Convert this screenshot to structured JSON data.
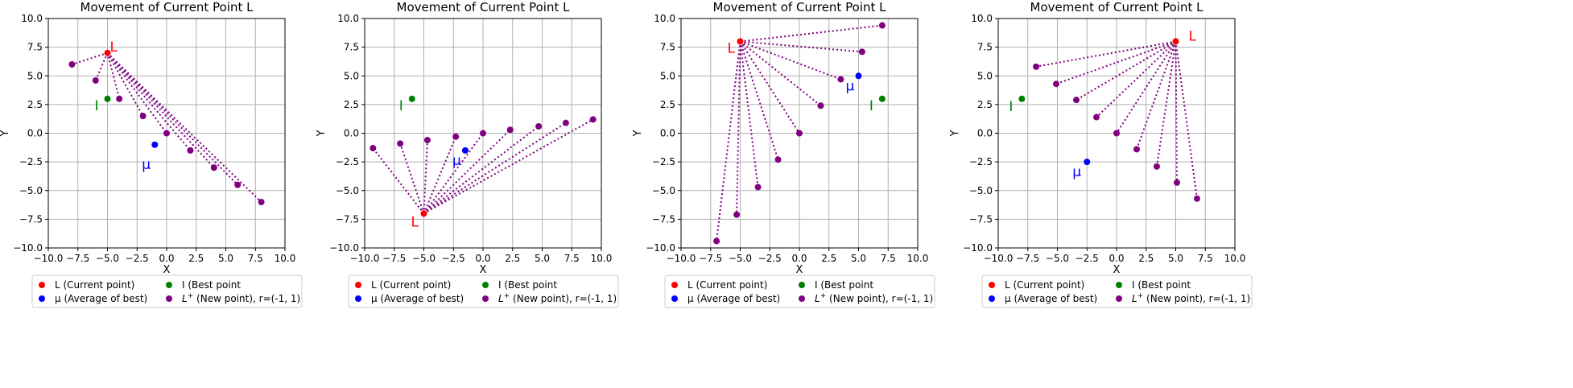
{
  "colors": {
    "current": "#ff0000",
    "average": "#0000ff",
    "best": "#008000",
    "new": "#800080"
  },
  "chart_data": [
    {
      "type": "scatter",
      "title": "Movement of Current Point L",
      "xlabel": "X",
      "ylabel": "Y",
      "xlim": [
        -10,
        10
      ],
      "ylim": [
        -10,
        10
      ],
      "xticks": [
        "−10.0",
        "−7.5",
        "−5.0",
        "−2.5",
        "0.0",
        "2.5",
        "5.0",
        "7.5",
        "10.0"
      ],
      "yticks": [
        "−10.0",
        "−7.5",
        "−5.0",
        "−2.5",
        "0.0",
        "2.5",
        "5.0",
        "7.5",
        "10.0"
      ],
      "grid": true,
      "legend_position": "below",
      "legend": [
        {
          "label": "L (Current point)",
          "series": "current"
        },
        {
          "label": "I (Best point",
          "series": "best"
        },
        {
          "label": "μ (Average of best)",
          "series": "average"
        },
        {
          "label_main": "L",
          "label_sup": "+",
          "label_rest": " (New point),   r=(-1, 1)",
          "series": "new"
        }
      ],
      "current": {
        "x": -5,
        "y": 7,
        "label": "L"
      },
      "best": {
        "x": -5,
        "y": 3,
        "label": "I"
      },
      "average": {
        "x": -1,
        "y": -1,
        "label": "μ"
      },
      "new_points": [
        {
          "x": -8.0,
          "y": 6.0
        },
        {
          "x": -6.0,
          "y": 4.6
        },
        {
          "x": -4.0,
          "y": 3.0
        },
        {
          "x": -2.0,
          "y": 1.5
        },
        {
          "x": 0.0,
          "y": 0.0
        },
        {
          "x": 2.0,
          "y": -1.5
        },
        {
          "x": 4.0,
          "y": -3.0
        },
        {
          "x": 6.0,
          "y": -4.5
        },
        {
          "x": 8.0,
          "y": -6.0
        }
      ]
    },
    {
      "type": "scatter",
      "title": "Movement of Current Point L",
      "xlabel": "X",
      "ylabel": "Y",
      "xlim": [
        -10,
        10
      ],
      "ylim": [
        -10,
        10
      ],
      "xticks": [
        "−10.0",
        "−7.5",
        "−5.0",
        "−2.5",
        "0.0",
        "2.5",
        "5.0",
        "7.5",
        "10.0"
      ],
      "yticks": [
        "−10.0",
        "−7.5",
        "−5.0",
        "−2.5",
        "0.0",
        "2.5",
        "5.0",
        "7.5",
        "10.0"
      ],
      "grid": true,
      "legend_position": "below",
      "legend": [
        {
          "label": "L (Current point)",
          "series": "current"
        },
        {
          "label": "I (Best point",
          "series": "best"
        },
        {
          "label": "μ (Average of best)",
          "series": "average"
        },
        {
          "label_main": "L",
          "label_sup": "+",
          "label_rest": " (New point),   r=(-1, 1)",
          "series": "new"
        }
      ],
      "current": {
        "x": -5,
        "y": -7,
        "label": "L"
      },
      "best": {
        "x": -6,
        "y": 3,
        "label": "I"
      },
      "average": {
        "x": -1.5,
        "y": -1.5,
        "label": "μ"
      },
      "new_points": [
        {
          "x": -9.3,
          "y": -1.3
        },
        {
          "x": -7.0,
          "y": -0.9
        },
        {
          "x": -4.7,
          "y": -0.6
        },
        {
          "x": -2.3,
          "y": -0.3
        },
        {
          "x": 0.0,
          "y": 0.0
        },
        {
          "x": 2.3,
          "y": 0.3
        },
        {
          "x": 4.7,
          "y": 0.6
        },
        {
          "x": 7.0,
          "y": 0.9
        },
        {
          "x": 9.3,
          "y": 1.2
        }
      ]
    },
    {
      "type": "scatter",
      "title": "Movement of Current Point L",
      "xlabel": "X",
      "ylabel": "Y",
      "xlim": [
        -10,
        10
      ],
      "ylim": [
        -10,
        10
      ],
      "xticks": [
        "−10.0",
        "−7.5",
        "−5.0",
        "−2.5",
        "0.0",
        "2.5",
        "5.0",
        "7.5",
        "10.0"
      ],
      "yticks": [
        "−10.0",
        "−7.5",
        "−5.0",
        "−2.5",
        "0.0",
        "2.5",
        "5.0",
        "7.5",
        "10.0"
      ],
      "grid": true,
      "legend_position": "below",
      "legend": [
        {
          "label": "L (Current point)",
          "series": "current"
        },
        {
          "label": "I (Best point",
          "series": "best"
        },
        {
          "label": "μ (Average of best)",
          "series": "average"
        },
        {
          "label_main": "L",
          "label_sup": "+",
          "label_rest": " (New point),   r=(-1, 1)",
          "series": "new"
        }
      ],
      "current": {
        "x": -5,
        "y": 8,
        "label": "L"
      },
      "best": {
        "x": 7,
        "y": 3,
        "label": "I"
      },
      "average": {
        "x": 5,
        "y": 5,
        "label": "μ"
      },
      "new_points": [
        {
          "x": 7.0,
          "y": 9.4
        },
        {
          "x": 5.3,
          "y": 7.1
        },
        {
          "x": 3.5,
          "y": 4.7
        },
        {
          "x": 1.8,
          "y": 2.4
        },
        {
          "x": 0.0,
          "y": 0.0
        },
        {
          "x": -1.8,
          "y": -2.3
        },
        {
          "x": -3.5,
          "y": -4.7
        },
        {
          "x": -5.3,
          "y": -7.1
        },
        {
          "x": -7.0,
          "y": -9.4
        }
      ]
    },
    {
      "type": "scatter",
      "title": "Movement of Current Point L",
      "xlabel": "X",
      "ylabel": "Y",
      "xlim": [
        -10,
        10
      ],
      "ylim": [
        -10,
        10
      ],
      "xticks": [
        "−10.0",
        "−7.5",
        "−5.0",
        "−2.5",
        "0.0",
        "2.5",
        "5.0",
        "7.5",
        "10.0"
      ],
      "yticks": [
        "−10.0",
        "−7.5",
        "−5.0",
        "−2.5",
        "0.0",
        "2.5",
        "5.0",
        "7.5",
        "10.0"
      ],
      "grid": true,
      "legend_position": "below",
      "legend": [
        {
          "label": "L (Current point)",
          "series": "current"
        },
        {
          "label": "I (Best point",
          "series": "best"
        },
        {
          "label": "μ (Average of best)",
          "series": "average"
        },
        {
          "label_main": "L",
          "label_sup": "+",
          "label_rest": " (New point),   r=(-1, 1)",
          "series": "new"
        }
      ],
      "current": {
        "x": 5,
        "y": 8,
        "label": "L"
      },
      "best": {
        "x": -8,
        "y": 3,
        "label": "I"
      },
      "average": {
        "x": -2.5,
        "y": -2.5,
        "label": "μ"
      },
      "new_points": [
        {
          "x": -6.8,
          "y": 5.8
        },
        {
          "x": -5.1,
          "y": 4.3
        },
        {
          "x": -3.4,
          "y": 2.9
        },
        {
          "x": -1.7,
          "y": 1.4
        },
        {
          "x": 0.0,
          "y": 0.0
        },
        {
          "x": 1.7,
          "y": -1.4
        },
        {
          "x": 3.4,
          "y": -2.9
        },
        {
          "x": 5.1,
          "y": -4.3
        },
        {
          "x": 6.8,
          "y": -5.7
        }
      ]
    }
  ]
}
